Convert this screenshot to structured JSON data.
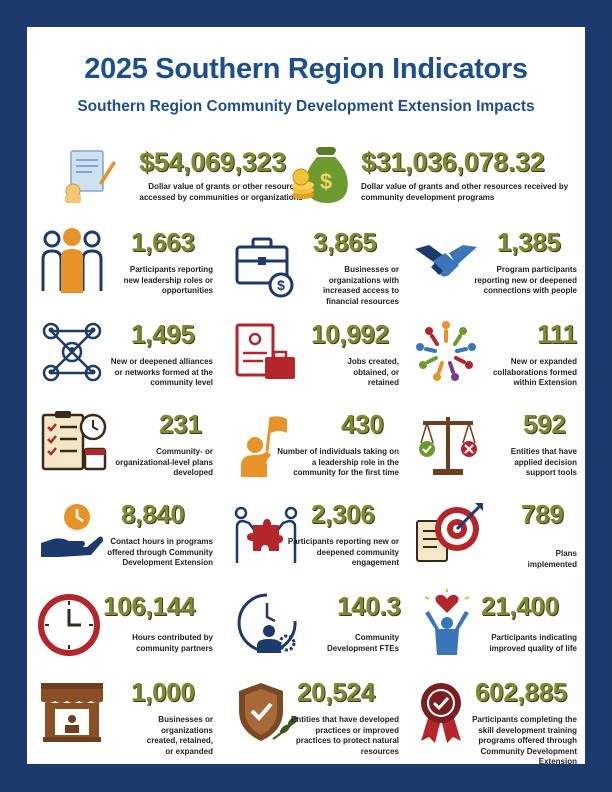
{
  "header": {
    "title": "2025 Southern Region Indicators",
    "subtitle": "Southern Region Community Development Extension Impacts"
  },
  "colors": {
    "background": "#1c3a6b",
    "title": "#1d4f8c",
    "number": "#7e8b32",
    "orange": "#e8922a",
    "red": "#b3262c",
    "navy": "#1c3a6b"
  },
  "indicators": [
    {
      "icon": "grant-document-icon",
      "value": "$54,069,323",
      "label": "Dollar value of grants or other resources accessed by communities or organizations"
    },
    {
      "icon": "money-bag-icon",
      "value": "$31,036,078.32",
      "label": "Dollar value of grants and other resources received by community development programs"
    },
    {
      "icon": "people-leader-icon",
      "value": "1,663",
      "label": "Participants reporting new leadership roles or opportunities"
    },
    {
      "icon": "briefcase-dollar-icon",
      "value": "3,865",
      "label": "Businesses or organizations with increased access to financial resources"
    },
    {
      "icon": "handshake-icon",
      "value": "1,385",
      "label": "Program participants reporting new or deepened connections with people"
    },
    {
      "icon": "network-icon",
      "value": "1,495",
      "label": "New or deepened alliances or networks formed at the community level"
    },
    {
      "icon": "job-application-icon",
      "value": "10,992",
      "label": "Jobs created, obtained, or retained"
    },
    {
      "icon": "people-circle-icon",
      "value": "111",
      "label": "New or expanded collaborations formed within Extension"
    },
    {
      "icon": "checklist-clock-icon",
      "value": "231",
      "label": "Community- or organizational-level plans developed"
    },
    {
      "icon": "person-flag-icon",
      "value": "430",
      "label": "Number of individuals taking on a leadership role in the community for the first time"
    },
    {
      "icon": "balance-scale-icon",
      "value": "592",
      "label": "Entities that have applied decision support tools"
    },
    {
      "icon": "hand-clock-icon",
      "value": "8,840",
      "label": "Contact hours in programs offered through Community Development Extension"
    },
    {
      "icon": "puzzle-people-icon",
      "value": "2,306",
      "label": "Participants reporting new or deepened community engagement"
    },
    {
      "icon": "target-clipboard-icon",
      "value": "789",
      "label": "Plans implemented"
    },
    {
      "icon": "wall-clock-icon",
      "value": "106,144",
      "label": "Hours contributed by community partners"
    },
    {
      "icon": "worker-clock-icon",
      "value": "140.3",
      "label": "Community Development FTEs"
    },
    {
      "icon": "person-heart-icon",
      "value": "21,400",
      "label": "Participants indicating improved quality of life"
    },
    {
      "icon": "storefront-icon",
      "value": "1,000",
      "label": "Businesses or organizations created, retained, or expanded"
    },
    {
      "icon": "shield-leaf-icon",
      "value": "20,524",
      "label": "Entities that have developed practices or improved practices to protect natural resources"
    },
    {
      "icon": "award-ribbon-icon",
      "value": "602,885",
      "label": "Participants completing the skill development training programs offered through Community Development Extension"
    }
  ]
}
